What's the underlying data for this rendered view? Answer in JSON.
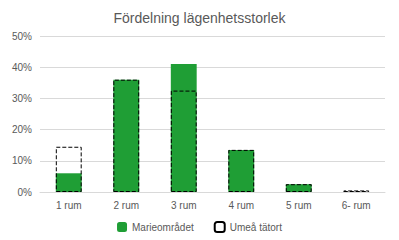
{
  "chart_data": {
    "type": "bar",
    "title": "Fördelning lägenhetsstorlek",
    "categories": [
      "1 rum",
      "2 rum",
      "3 rum",
      "4 rum",
      "5 rum",
      "6- rum"
    ],
    "series": [
      {
        "name": "Marieområdet",
        "color": "#1f9e35",
        "values": [
          6,
          36,
          41,
          13.5,
          2.5,
          0
        ]
      },
      {
        "name": "Umeå tätort",
        "color": "#000000",
        "line_style": "dashed",
        "values": [
          14.5,
          36,
          32.5,
          13.5,
          2.5,
          0.5
        ]
      }
    ],
    "ylim": [
      0,
      50
    ],
    "yticks": [
      {
        "value": 0,
        "label": "0%"
      },
      {
        "value": 10,
        "label": "10%"
      },
      {
        "value": 20,
        "label": "20%"
      },
      {
        "value": 30,
        "label": "30%"
      },
      {
        "value": 40,
        "label": "40%"
      },
      {
        "value": 50,
        "label": "50%"
      }
    ],
    "grid": true,
    "legend": "bottom"
  }
}
